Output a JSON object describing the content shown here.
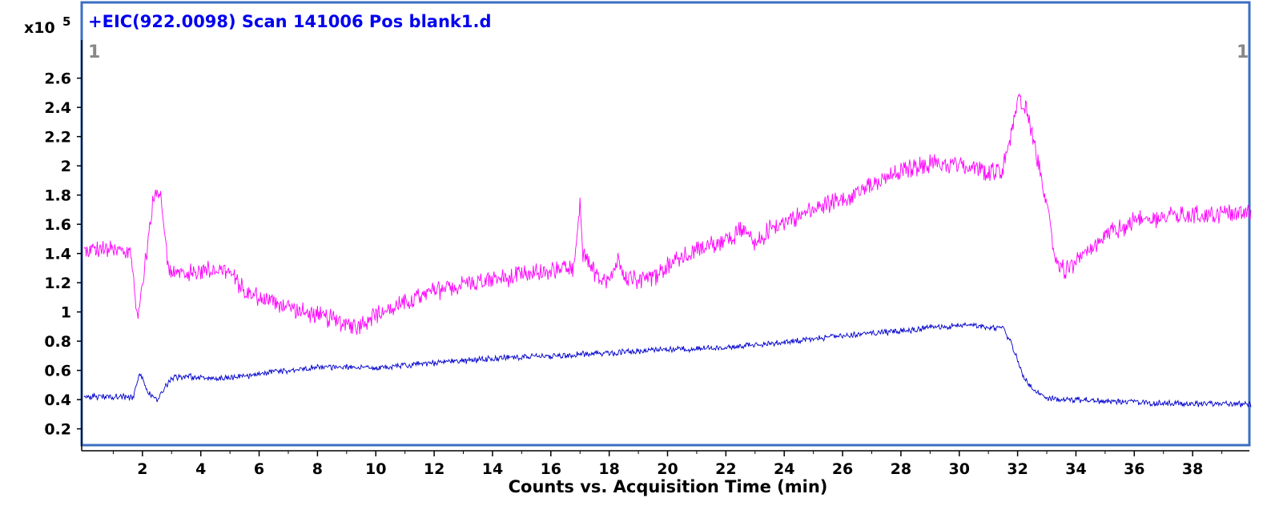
{
  "chart_data": {
    "type": "line",
    "title": "+EIC(922.0098) Scan 141006 Pos blank1.d",
    "xlabel": "Counts vs. Acquisition Time (min)",
    "y_multiplier_label": "x10",
    "y_multiplier_exponent": "5",
    "corner_label_left": "1",
    "corner_label_right": "1",
    "xlim": [
      0,
      40
    ],
    "ylim": [
      0.05,
      2.85
    ],
    "x_ticks": [
      2,
      4,
      6,
      8,
      10,
      12,
      14,
      16,
      18,
      20,
      22,
      24,
      26,
      28,
      30,
      32,
      34,
      36,
      38
    ],
    "x_tick_labels": [
      "2",
      "4",
      "6",
      "8",
      "10",
      "12",
      "14",
      "16",
      "18",
      "20",
      "22",
      "24",
      "26",
      "28",
      "30",
      "32",
      "34",
      "36",
      "38"
    ],
    "y_ticks": [
      0.2,
      0.4,
      0.6,
      0.8,
      1.0,
      1.2,
      1.4,
      1.6,
      1.8,
      2.0,
      2.2,
      2.4,
      2.6
    ],
    "y_tick_labels": [
      "0.2",
      "0.4",
      "0.6",
      "0.8",
      "1",
      "1.2",
      "1.4",
      "1.6",
      "1.8",
      "2",
      "2.2",
      "2.4",
      "2.6"
    ],
    "grid": false,
    "legend": "none",
    "colors": {
      "title": "#0000ee",
      "frame": "#3b6fc2",
      "magenta_trace": "#ff00ff",
      "blue_trace": "#0000cc"
    },
    "series": [
      {
        "color": "#ff00ff",
        "noise": 0.07,
        "x": [
          0.0,
          0.5,
          1.0,
          1.6,
          1.8,
          1.9,
          2.2,
          2.4,
          2.6,
          2.8,
          2.9,
          3.5,
          4.5,
          5.0,
          5.5,
          6.5,
          7.5,
          8.5,
          9.3,
          10.0,
          11.0,
          12.0,
          13.0,
          14.0,
          15.0,
          16.0,
          16.8,
          17.0,
          17.1,
          17.3,
          17.6,
          18.0,
          18.3,
          18.6,
          19.0,
          19.6,
          20.0,
          21.0,
          22.0,
          22.6,
          23.0,
          23.5,
          24.0,
          25.0,
          26.0,
          27.0,
          28.0,
          29.0,
          30.0,
          31.0,
          31.5,
          31.8,
          32.0,
          32.3,
          32.6,
          33.0,
          33.3,
          33.6,
          34.0,
          34.5,
          35.0,
          36.0,
          37.0,
          38.0,
          39.0,
          40.0
        ],
        "y": [
          1.42,
          1.43,
          1.42,
          1.4,
          1.0,
          1.04,
          1.5,
          1.8,
          1.85,
          1.5,
          1.28,
          1.26,
          1.3,
          1.27,
          1.14,
          1.07,
          1.0,
          0.95,
          0.9,
          0.98,
          1.06,
          1.14,
          1.19,
          1.22,
          1.25,
          1.28,
          1.3,
          1.72,
          1.38,
          1.33,
          1.25,
          1.22,
          1.35,
          1.25,
          1.22,
          1.25,
          1.32,
          1.42,
          1.5,
          1.56,
          1.45,
          1.57,
          1.62,
          1.7,
          1.78,
          1.86,
          1.96,
          2.02,
          2.0,
          1.96,
          1.98,
          2.25,
          2.45,
          2.4,
          2.1,
          1.75,
          1.35,
          1.28,
          1.33,
          1.42,
          1.52,
          1.62,
          1.65,
          1.66,
          1.67,
          1.68
        ]
      },
      {
        "color": "#0000cc",
        "noise": 0.022,
        "x": [
          0.0,
          1.0,
          1.7,
          1.9,
          2.2,
          2.5,
          3.0,
          3.5,
          4.5,
          5.5,
          6.5,
          8.0,
          10.0,
          12.0,
          14.0,
          16.0,
          18.0,
          20.0,
          22.0,
          24.0,
          26.0,
          28.0,
          29.5,
          30.5,
          31.5,
          31.8,
          32.2,
          32.6,
          33.0,
          34.0,
          36.0,
          38.0,
          40.0
        ],
        "y": [
          0.42,
          0.42,
          0.42,
          0.58,
          0.45,
          0.4,
          0.55,
          0.56,
          0.54,
          0.56,
          0.59,
          0.62,
          0.62,
          0.65,
          0.68,
          0.7,
          0.72,
          0.74,
          0.76,
          0.79,
          0.84,
          0.87,
          0.9,
          0.91,
          0.89,
          0.78,
          0.55,
          0.45,
          0.41,
          0.4,
          0.38,
          0.37,
          0.37
        ]
      }
    ]
  }
}
